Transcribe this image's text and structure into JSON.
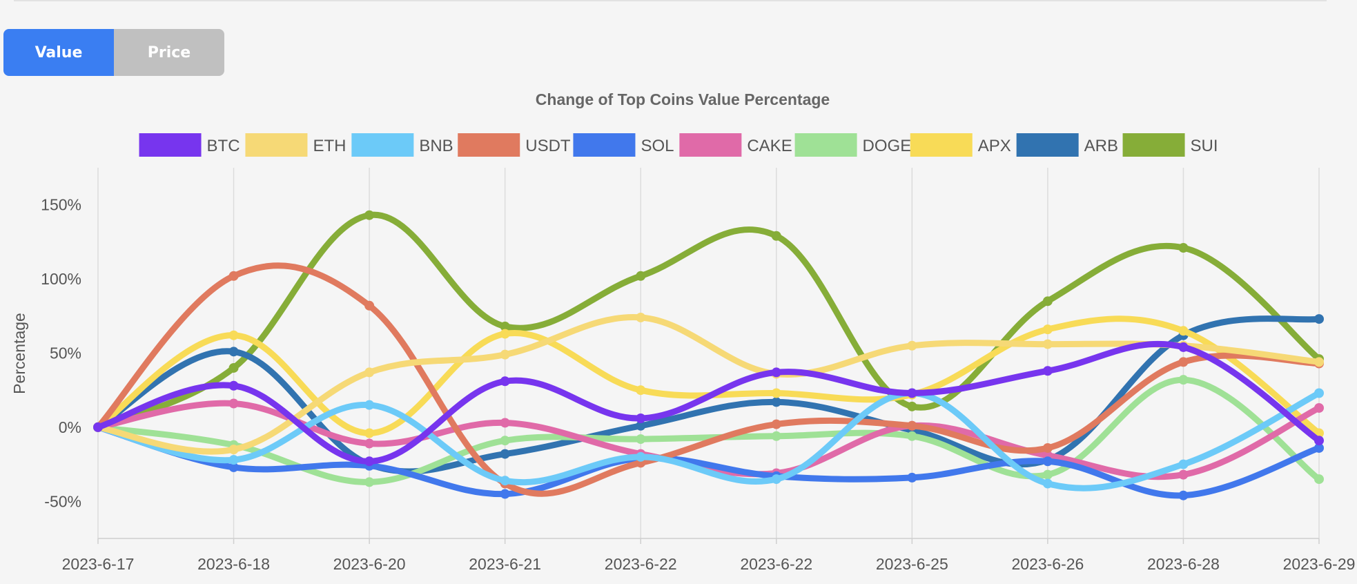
{
  "controls": {
    "value_label": "Value",
    "price_label": "Price",
    "active": "value"
  },
  "chart_data": {
    "type": "line",
    "title": "Change of Top Coins Value Percentage",
    "xlabel": "",
    "ylabel": "Percentage",
    "ylim": [
      -75,
      175
    ],
    "yticks": [
      -50,
      0,
      50,
      100,
      150
    ],
    "ytick_labels": [
      "-50%",
      "0%",
      "50%",
      "100%",
      "150%"
    ],
    "grid": "vertical",
    "legend_position": "top",
    "categories": [
      "2023-6-17",
      "2023-6-18",
      "2023-6-20",
      "2023-6-21",
      "2023-6-22",
      "2023-6-22",
      "2023-6-25",
      "2023-6-26",
      "2023-6-28",
      "2023-6-29"
    ],
    "series": [
      {
        "name": "SUI",
        "color": "#86ad38",
        "values": [
          0,
          40,
          143,
          68,
          102,
          129,
          14,
          85,
          121,
          46
        ]
      },
      {
        "name": "ARB",
        "color": "#3173b0",
        "values": [
          0,
          51,
          -25,
          -18,
          1,
          17,
          -2,
          -22,
          62,
          73
        ]
      },
      {
        "name": "APX",
        "color": "#f8db57",
        "values": [
          0,
          62,
          -4,
          63,
          25,
          23,
          22,
          66,
          65,
          -4
        ]
      },
      {
        "name": "DOGE",
        "color": "#9fe196",
        "values": [
          0,
          -12,
          -37,
          -9,
          -8,
          -6,
          -6,
          -32,
          32,
          -35
        ]
      },
      {
        "name": "CAKE",
        "color": "#e06aa8",
        "values": [
          0,
          16,
          -11,
          3,
          -18,
          -31,
          1,
          -19,
          -32,
          13
        ]
      },
      {
        "name": "SOL",
        "color": "#4178ec",
        "values": [
          0,
          -27,
          -26,
          -45,
          -21,
          -33,
          -34,
          -23,
          -46,
          -14
        ]
      },
      {
        "name": "USDT",
        "color": "#e07a5f",
        "values": [
          0,
          102,
          82,
          -38,
          -24,
          2,
          1,
          -14,
          44,
          43
        ]
      },
      {
        "name": "BNB",
        "color": "#6ccaf8",
        "values": [
          0,
          -22,
          15,
          -36,
          -20,
          -35,
          23,
          -38,
          -25,
          23
        ]
      },
      {
        "name": "ETH",
        "color": "#f6d976",
        "values": [
          0,
          -15,
          37,
          49,
          74,
          36,
          55,
          56,
          55,
          44
        ]
      },
      {
        "name": "BTC",
        "color": "#7735ee",
        "values": [
          0,
          28,
          -23,
          31,
          6,
          37,
          23,
          38,
          54,
          -9
        ]
      }
    ],
    "legend_order": [
      "BTC",
      "ETH",
      "BNB",
      "USDT",
      "SOL",
      "CAKE",
      "DOGE",
      "APX",
      "ARB",
      "SUI"
    ]
  }
}
